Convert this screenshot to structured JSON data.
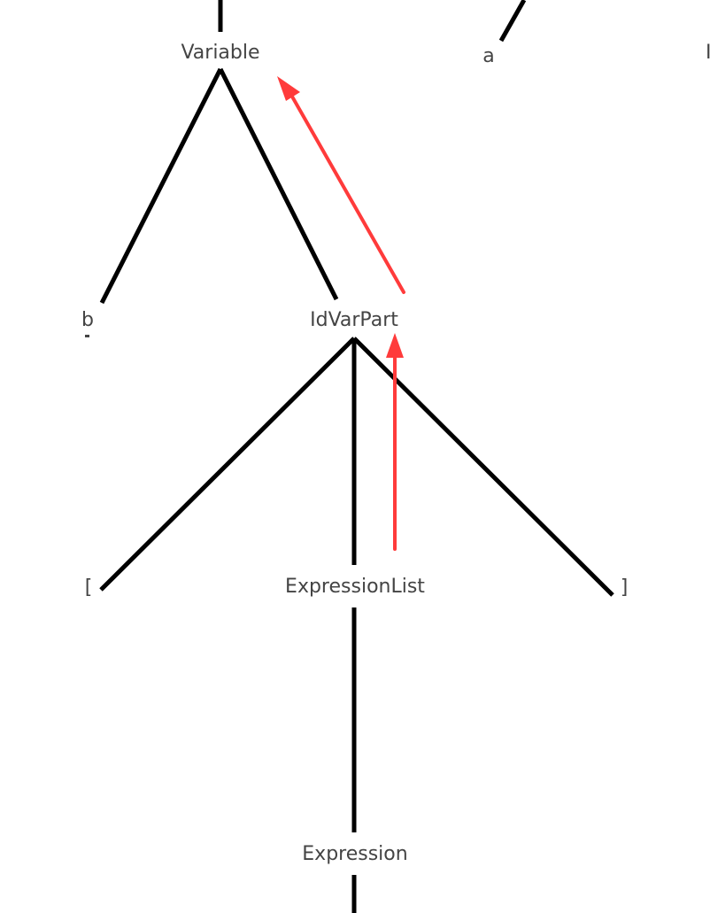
{
  "nodes": {
    "variable": "Variable",
    "a": "a",
    "right_partial": "I",
    "b": "b",
    "idvarpart": "IdVarPart",
    "lbracket": "[",
    "expressionlist": "ExpressionList",
    "rbracket": "]",
    "expression": "Expression"
  },
  "colors": {
    "edge": "#000000",
    "annotation_arrow": "#ff3b3b",
    "label": "#444444"
  }
}
